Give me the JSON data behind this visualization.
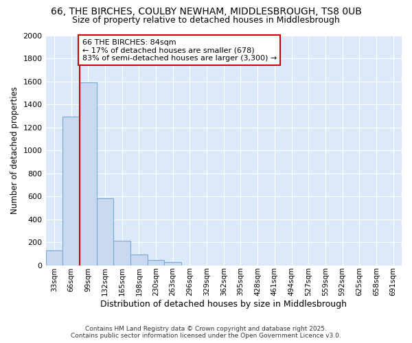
{
  "title_line1": "66, THE BIRCHES, COULBY NEWHAM, MIDDLESBROUGH, TS8 0UB",
  "title_line2": "Size of property relative to detached houses in Middlesbrough",
  "xlabel": "Distribution of detached houses by size in Middlesbrough",
  "ylabel": "Number of detached properties",
  "footnote1": "Contains HM Land Registry data © Crown copyright and database right 2025.",
  "footnote2": "Contains public sector information licensed under the Open Government Licence v3.0.",
  "bin_labels": [
    "33sqm",
    "66sqm",
    "99sqm",
    "132sqm",
    "165sqm",
    "198sqm",
    "230sqm",
    "263sqm",
    "296sqm",
    "329sqm",
    "362sqm",
    "395sqm",
    "428sqm",
    "461sqm",
    "494sqm",
    "527sqm",
    "559sqm",
    "592sqm",
    "625sqm",
    "658sqm",
    "691sqm"
  ],
  "bar_values": [
    130,
    1290,
    1590,
    580,
    215,
    95,
    45,
    25,
    0,
    0,
    0,
    0,
    0,
    0,
    0,
    0,
    0,
    0,
    0,
    0,
    0
  ],
  "bar_color": "#c9d9f0",
  "bar_edge_color": "#7aaad4",
  "annotation_text": "66 THE BIRCHES: 84sqm\n← 17% of detached houses are smaller (678)\n83% of semi-detached houses are larger (3,300) →",
  "annotation_box_color": "#ffffff",
  "annotation_box_edge_color": "#cc0000",
  "annotation_text_color": "#000000",
  "vline_x": 1.5,
  "vline_color": "#cc0000",
  "ylim": [
    0,
    2000
  ],
  "plot_bg_color": "#dce9f8",
  "fig_bg_color": "#ffffff",
  "grid_color": "#ffffff",
  "title_fontsize": 10,
  "subtitle_fontsize": 9,
  "ylabel_fontsize": 8.5,
  "xlabel_fontsize": 9,
  "annotation_fontsize": 8
}
